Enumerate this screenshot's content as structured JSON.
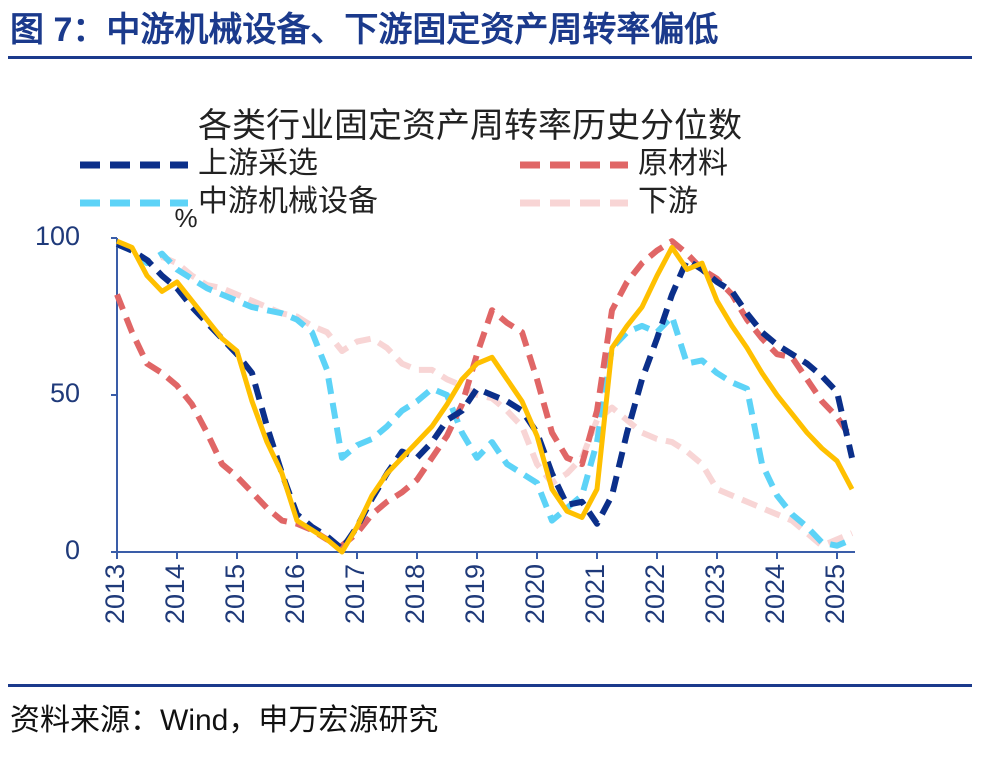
{
  "header": {
    "title": "图 7：中游机械设备、下游固定资产周转率偏低"
  },
  "footer": {
    "source": "资料来源：Wind，申万宏源研究"
  },
  "chart_data": {
    "type": "line",
    "title": "各类行业固定资产周转率历史分位数",
    "ylabel": "%",
    "legend": "top",
    "xlim": [
      2013,
      2025.3
    ],
    "ylim": [
      0,
      100
    ],
    "yticks": [
      0,
      50,
      100
    ],
    "xticks": [
      2013,
      2014,
      2015,
      2016,
      2017,
      2018,
      2019,
      2020,
      2021,
      2022,
      2023,
      2024,
      2025
    ],
    "x": [
      2013,
      2013.25,
      2013.5,
      2013.75,
      2014,
      2014.25,
      2014.5,
      2014.75,
      2015,
      2015.25,
      2015.5,
      2015.75,
      2016,
      2016.25,
      2016.5,
      2016.75,
      2017,
      2017.25,
      2017.5,
      2017.75,
      2018,
      2018.25,
      2018.5,
      2018.75,
      2019,
      2019.25,
      2019.5,
      2019.75,
      2020,
      2020.25,
      2020.5,
      2020.75,
      2021,
      2021.25,
      2021.5,
      2021.75,
      2022,
      2022.25,
      2022.5,
      2022.75,
      2023,
      2023.25,
      2023.5,
      2023.75,
      2024,
      2024.25,
      2024.5,
      2024.75,
      2025,
      2025.25
    ],
    "series": [
      {
        "name": "上游采选",
        "color": "#0b2f8a",
        "dashed": true,
        "values": [
          98,
          96,
          93,
          88,
          84,
          78,
          73,
          68,
          63,
          57,
          40,
          25,
          12,
          8,
          5,
          1,
          8,
          17,
          25,
          32,
          30,
          35,
          42,
          45,
          52,
          50,
          48,
          45,
          38,
          25,
          15,
          16,
          9,
          18,
          38,
          55,
          68,
          82,
          93,
          90,
          86,
          83,
          76,
          70,
          66,
          63,
          60,
          56,
          51,
          30
        ]
      },
      {
        "name": "原材料",
        "color": "#e06666",
        "dashed": true,
        "values": [
          82,
          70,
          60,
          57,
          53,
          47,
          38,
          28,
          24,
          19,
          14,
          10,
          9,
          7,
          4,
          2,
          6,
          12,
          16,
          19,
          23,
          30,
          37,
          47,
          63,
          77,
          73,
          70,
          55,
          38,
          30,
          28,
          45,
          77,
          86,
          92,
          96,
          99,
          95,
          90,
          87,
          82,
          74,
          68,
          63,
          62,
          55,
          48,
          43,
          36
        ]
      },
      {
        "name": "中游机械设备",
        "color": "#5dd3f7",
        "dashed": true,
        "values": [
          98,
          96,
          92,
          95,
          90,
          87,
          84,
          82,
          80,
          78,
          77,
          76,
          74,
          70,
          58,
          30,
          34,
          36,
          40,
          45,
          48,
          52,
          50,
          38,
          30,
          35,
          28,
          25,
          22,
          10,
          14,
          18,
          35,
          65,
          70,
          72,
          70,
          75,
          60,
          61,
          57,
          54,
          52,
          28,
          18,
          12,
          8,
          3,
          2,
          4
        ]
      },
      {
        "name": "下游",
        "color": "#f8d5d5",
        "dashed": true,
        "values": [
          98,
          96,
          92,
          94,
          92,
          88,
          85,
          84,
          82,
          80,
          78,
          76,
          75,
          72,
          70,
          64,
          67,
          68,
          65,
          60,
          58,
          58,
          55,
          53,
          50,
          49,
          45,
          40,
          28,
          22,
          25,
          30,
          42,
          46,
          42,
          38,
          36,
          35,
          32,
          28,
          20,
          18,
          16,
          14,
          12,
          10,
          6,
          2,
          4,
          6
        ]
      },
      {
        "color": "#ffc000",
        "dashed": false,
        "values": [
          99,
          97,
          88,
          83,
          86,
          80,
          74,
          68,
          64,
          48,
          35,
          25,
          10,
          7,
          4,
          0,
          8,
          18,
          25,
          30,
          35,
          40,
          47,
          55,
          60,
          62,
          55,
          48,
          37,
          20,
          13,
          11,
          20,
          65,
          72,
          78,
          88,
          97,
          90,
          92,
          80,
          72,
          65,
          57,
          50,
          44,
          38,
          33,
          29,
          20
        ]
      }
    ]
  }
}
